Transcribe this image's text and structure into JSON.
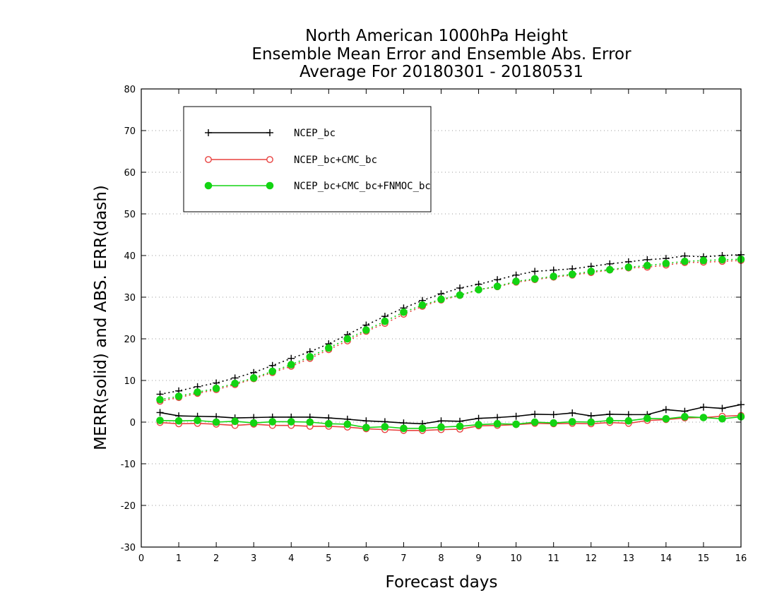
{
  "chart_data": {
    "type": "line",
    "title_lines": [
      "North American 1000hPa Height",
      "Ensemble Mean Error and Ensemble Abs. Error",
      "Average For 20180301 - 20180531"
    ],
    "xlabel": "Forecast days",
    "ylabel": "MERR(solid) and ABS. ERR(dash)",
    "xlim": [
      0,
      16
    ],
    "ylim": [
      -30,
      80
    ],
    "x_ticks": [
      "0",
      "1",
      "2",
      "3",
      "4",
      "5",
      "6",
      "7",
      "8",
      "9",
      "10",
      "11",
      "12",
      "13",
      "14",
      "15",
      "16"
    ],
    "y_ticks": [
      "-30",
      "-20",
      "-10",
      "0",
      "10",
      "20",
      "30",
      "40",
      "50",
      "60",
      "70",
      "80"
    ],
    "grid": "horizontal dotted",
    "legend_position": "top-left",
    "x": [
      0.5,
      1,
      1.5,
      2,
      2.5,
      3,
      3.5,
      4,
      4.5,
      5,
      5.5,
      6,
      6.5,
      7,
      7.5,
      8,
      8.5,
      9,
      9.5,
      10,
      10.5,
      11,
      11.5,
      12,
      12.5,
      13,
      13.5,
      14,
      14.5,
      15,
      15.5,
      16
    ],
    "series": [
      {
        "name": "NCEP_bc",
        "color": "#000000",
        "marker": "plus",
        "merr": [
          2.3,
          1.5,
          1.4,
          1.3,
          1.0,
          1.1,
          1.2,
          1.2,
          1.2,
          1.0,
          0.7,
          0.3,
          0.1,
          -0.2,
          -0.4,
          0.3,
          0.2,
          0.9,
          1.1,
          1.4,
          1.9,
          1.8,
          2.2,
          1.5,
          1.9,
          1.8,
          1.8,
          3.0,
          2.6,
          3.6,
          3.3,
          4.2
        ],
        "abs_err": [
          6.7,
          7.5,
          8.5,
          9.4,
          10.6,
          11.9,
          13.6,
          15.3,
          16.9,
          18.8,
          21.0,
          23.3,
          25.4,
          27.4,
          29.2,
          30.8,
          32.2,
          33.1,
          34.2,
          35.3,
          36.2,
          36.5,
          36.8,
          37.4,
          38.0,
          38.5,
          39.0,
          39.3,
          39.9,
          39.7,
          40.0,
          40.2
        ]
      },
      {
        "name": "NCEP_bc+CMC_bc",
        "color": "#e8413f",
        "marker": "open-circle",
        "merr": [
          -0.1,
          -0.4,
          -0.3,
          -0.5,
          -0.8,
          -0.5,
          -0.8,
          -0.8,
          -1.0,
          -1.0,
          -1.2,
          -1.6,
          -1.8,
          -2.0,
          -2.0,
          -1.8,
          -1.7,
          -0.9,
          -0.8,
          -0.6,
          -0.3,
          -0.4,
          -0.3,
          -0.4,
          -0.1,
          -0.3,
          0.4,
          0.6,
          1.0,
          1.1,
          1.4,
          1.6
        ],
        "abs_err": [
          5.0,
          5.9,
          6.9,
          7.8,
          9.0,
          10.4,
          11.9,
          13.4,
          15.3,
          17.4,
          19.5,
          21.8,
          23.7,
          25.9,
          27.8,
          29.3,
          30.4,
          31.8,
          32.5,
          33.6,
          34.2,
          34.8,
          35.3,
          35.9,
          36.5,
          37.0,
          37.2,
          37.7,
          38.3,
          38.4,
          38.6,
          38.8
        ]
      },
      {
        "name": "NCEP_bc+CMC_bc+FNMOC_bc",
        "color": "#13d413",
        "marker": "filled-circle",
        "merr": [
          0.4,
          0.3,
          0.4,
          0.0,
          0.2,
          -0.2,
          0.1,
          0.1,
          0.0,
          -0.4,
          -0.5,
          -1.3,
          -1.1,
          -1.5,
          -1.5,
          -1.2,
          -1.0,
          -0.6,
          -0.4,
          -0.5,
          0.0,
          -0.2,
          0.1,
          0.0,
          0.4,
          0.3,
          0.9,
          0.8,
          1.3,
          1.1,
          0.8,
          1.3
        ],
        "abs_err": [
          5.4,
          6.2,
          7.2,
          8.1,
          9.3,
          10.6,
          12.2,
          13.8,
          15.7,
          17.8,
          20.0,
          22.1,
          24.2,
          26.4,
          28.1,
          29.5,
          30.5,
          31.8,
          32.6,
          33.8,
          34.4,
          35.0,
          35.5,
          36.2,
          36.6,
          37.2,
          37.6,
          38.1,
          38.6,
          38.8,
          39.0,
          39.1
        ]
      }
    ]
  }
}
